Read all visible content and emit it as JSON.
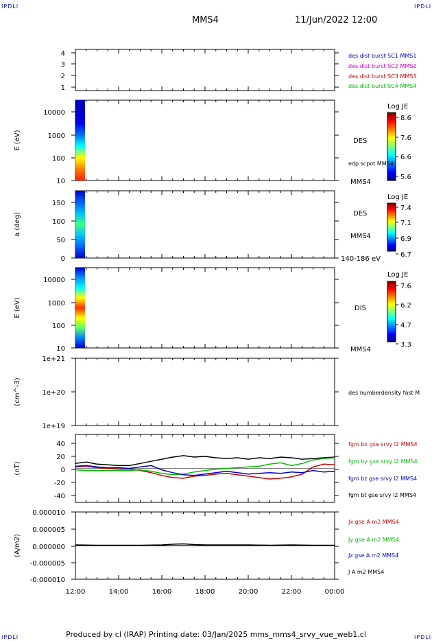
{
  "corners": {
    "top_left": "IPDLI",
    "top_right": "IPDLI",
    "bottom_left": "IPDLI",
    "bottom_right": "IPDLI"
  },
  "header": {
    "title": "MMS4",
    "datetime": "11/Jun/2022 12:00"
  },
  "footer": {
    "text": "Produced by cl (IRAP)   Printing date: 03/Jan/2025   mms_mms4_srvy_vue_web1.cl"
  },
  "colors": {
    "mms1": "#0000cc",
    "mms2": "#cc00cc",
    "mms3": "#cc0000",
    "mms4": "#00bb00",
    "black": "#000000"
  },
  "chart_data": [
    {
      "type": "line",
      "id": "burst",
      "ylabel": "",
      "ylim": [
        0.6,
        4.5
      ],
      "yticks": [
        "4",
        "3",
        "2",
        "1"
      ],
      "legend": [
        {
          "label": "des dist burst SC1 MMS1",
          "color": "#0000cc"
        },
        {
          "label": "des dist burst SC2 MMS2",
          "color": "#cc00cc"
        },
        {
          "label": "des dist burst SC3 MMS3",
          "color": "#cc0000"
        },
        {
          "label": "des dist burst SC4 MMS4",
          "color": "#00bb00"
        }
      ]
    },
    {
      "type": "heatmap",
      "id": "des_energy",
      "ylabel": "E (eV)",
      "scale": "log",
      "ylim": [
        10,
        30000
      ],
      "yticks": [
        "10000",
        "1000",
        "100",
        "10"
      ],
      "labels": [
        "DES",
        "edp scpot MMS4",
        "MMS4"
      ],
      "colorbar": {
        "title": "Log JE",
        "ticks": [
          "8.6",
          "7.6",
          "6.6",
          "5.6"
        ]
      }
    },
    {
      "type": "heatmap",
      "id": "des_pitch",
      "ylabel": "a (deg)",
      "ylim": [
        0,
        180
      ],
      "yticks": [
        "150",
        "100",
        "50",
        "0"
      ],
      "labels": [
        "DES",
        "MMS4",
        "140-186 eV"
      ],
      "colorbar": {
        "title": "Log JE",
        "ticks": [
          "7.4",
          "7.1",
          "6.9",
          "6.7"
        ]
      }
    },
    {
      "type": "heatmap",
      "id": "dis_energy",
      "ylabel": "E (eV)",
      "scale": "log",
      "ylim": [
        10,
        30000
      ],
      "yticks": [
        "10000",
        "1000",
        "100",
        "10"
      ],
      "labels": [
        "DIS",
        "MMS4"
      ],
      "colorbar": {
        "title": "Log JE",
        "ticks": [
          "7.6",
          "6.2",
          "4.7",
          "3.3"
        ]
      }
    },
    {
      "type": "line",
      "id": "density",
      "ylabel": "(cm^-3)",
      "scale": "log",
      "ylim": [
        1e+19,
        1e+21
      ],
      "yticks": [
        "1e+21",
        "1e+20",
        "1e+19"
      ],
      "legend": [
        {
          "label": "des numberdensity fast M",
          "color": "#000000"
        }
      ]
    },
    {
      "type": "line",
      "id": "fgm",
      "ylabel": "(nT)",
      "ylim": [
        -48,
        48
      ],
      "yticks": [
        "40",
        "20",
        "0",
        "-20",
        "-40"
      ],
      "legend": [
        {
          "label": "fgm bx gse srvy l2 MMS4",
          "color": "#cc0000"
        },
        {
          "label": "fgm by gse srvy l2 MMS4",
          "color": "#00bb00"
        },
        {
          "label": "fgm bz gse srvy l2 MMS4",
          "color": "#0000cc"
        },
        {
          "label": "fgm bt gse srvy l2 MMS4",
          "color": "#000000"
        }
      ],
      "series": [
        {
          "name": "fgm bt gse srvy l2 MMS4",
          "color": "#000000",
          "x": [
            12.0,
            12.5,
            13.0,
            13.5,
            14.0,
            14.5,
            15.0,
            15.5,
            16.0,
            16.5,
            17.0,
            17.5,
            18.0,
            18.5,
            19.0,
            19.5,
            20.0,
            20.5,
            21.0,
            21.5,
            22.0,
            22.5,
            23.0,
            23.5,
            24.0
          ],
          "y": [
            7,
            9,
            6,
            5,
            4,
            4,
            7,
            10,
            13,
            16,
            18,
            16,
            17,
            15,
            14,
            15,
            13,
            15,
            14,
            16,
            15,
            13,
            14,
            15,
            16
          ]
        },
        {
          "name": "fgm bx gse srvy l2 MMS4",
          "color": "#cc0000",
          "x": [
            12.0,
            12.5,
            13.0,
            13.5,
            14.0,
            14.5,
            15.0,
            15.5,
            16.0,
            16.5,
            17.0,
            17.5,
            18.0,
            18.5,
            19.0,
            19.5,
            20.0,
            20.5,
            21.0,
            21.5,
            22.0,
            22.5,
            23.0,
            23.5,
            24.0
          ],
          "y": [
            2,
            3,
            1,
            0,
            -1,
            -1,
            -3,
            -6,
            -10,
            -13,
            -14,
            -11,
            -10,
            -8,
            -7,
            -9,
            -11,
            -13,
            -15,
            -14,
            -12,
            -8,
            2,
            6,
            5
          ]
        },
        {
          "name": "fgm by gse srvy l2 MMS4",
          "color": "#00bb00",
          "x": [
            12.0,
            12.5,
            13.0,
            13.5,
            14.0,
            14.5,
            15.0,
            15.5,
            16.0,
            16.5,
            17.0,
            17.5,
            18.0,
            18.5,
            19.0,
            19.5,
            20.0,
            20.5,
            21.0,
            21.5,
            22.0,
            22.5,
            23.0,
            23.5,
            24.0
          ],
          "y": [
            -2,
            -3,
            -3,
            -3,
            -3,
            -3,
            -2,
            -4,
            -7,
            -9,
            -8,
            -5,
            -3,
            -1,
            0,
            1,
            2,
            3,
            6,
            8,
            4,
            7,
            12,
            14,
            15
          ]
        },
        {
          "name": "fgm bz gse srvy l2 MMS4",
          "color": "#0000cc",
          "x": [
            12.0,
            12.5,
            13.0,
            13.5,
            14.0,
            14.5,
            15.0,
            15.5,
            16.0,
            16.5,
            17.0,
            17.5,
            18.0,
            18.5,
            19.0,
            19.5,
            20.0,
            20.5,
            21.0,
            21.5,
            22.0,
            22.5,
            23.0,
            23.5,
            24.0
          ],
          "y": [
            3,
            4,
            2,
            1,
            1,
            0,
            2,
            4,
            -2,
            -6,
            -9,
            -10,
            -8,
            -6,
            -4,
            -6,
            -8,
            -7,
            -6,
            -7,
            -5,
            -6,
            -3,
            -5,
            -4
          ]
        }
      ]
    },
    {
      "type": "line",
      "id": "current",
      "ylabel": "(A/m2)",
      "ylim": [
        -1e-05,
        1e-05
      ],
      "yticks": [
        "0.000010",
        "0.000005",
        "0.000000",
        "-0.000005",
        "-0.000010"
      ],
      "legend": [
        {
          "label": "Jx gse A m2 MMS4",
          "color": "#cc0000"
        },
        {
          "label": "Jy gse A m2 MMS4",
          "color": "#00bb00"
        },
        {
          "label": "Jz gse A m2 MMS4",
          "color": "#0000cc"
        },
        {
          "label": "J A m2 MMS4",
          "color": "#000000"
        }
      ],
      "series": [
        {
          "name": "J A m2 MMS4",
          "color": "#000000",
          "x": [
            12.0,
            13.0,
            14.0,
            15.0,
            16.0,
            16.5,
            17.0,
            17.5,
            18.0,
            19.0,
            20.0,
            21.0,
            22.0,
            23.0,
            24.0
          ],
          "y": [
            2e-07,
            1e-07,
            1e-07,
            1e-07,
            2e-07,
            4e-07,
            5e-07,
            3e-07,
            2e-07,
            2e-07,
            2e-07,
            1e-07,
            2e-07,
            1e-07,
            1e-07
          ]
        }
      ]
    }
  ],
  "xaxis": {
    "ticks": [
      "12:00",
      "14:00",
      "16:00",
      "18:00",
      "20:00",
      "22:00",
      "00:00"
    ],
    "range": [
      12,
      24
    ]
  }
}
